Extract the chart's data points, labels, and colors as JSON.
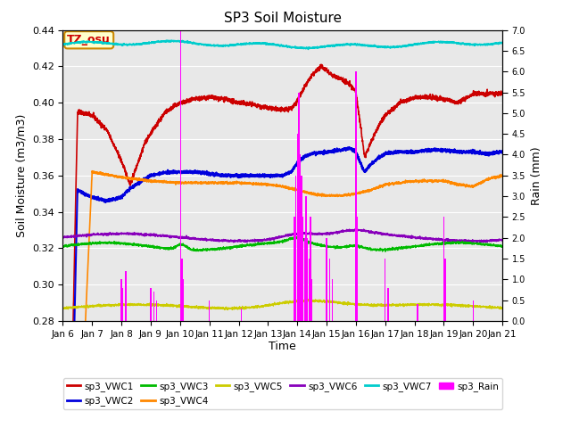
{
  "title": "SP3 Soil Moisture",
  "xlabel": "Time",
  "ylabel_left": "Soil Moisture (m3/m3)",
  "ylabel_right": "Rain (mm)",
  "ylim_left": [
    0.28,
    0.44
  ],
  "ylim_right": [
    0.0,
    7.0
  ],
  "bg_color": "#e8e8e8",
  "colors": {
    "VWC1": "#cc0000",
    "VWC2": "#0000dd",
    "VWC3": "#00bb00",
    "VWC4": "#ff8800",
    "VWC5": "#cccc00",
    "VWC6": "#8800bb",
    "VWC7": "#00cccc",
    "Rain": "#ff00ff"
  },
  "legend_entries": [
    {
      "label": "sp3_VWC1",
      "color": "#cc0000"
    },
    {
      "label": "sp3_VWC2",
      "color": "#0000dd"
    },
    {
      "label": "sp3_VWC3",
      "color": "#00bb00"
    },
    {
      "label": "sp3_VWC4",
      "color": "#ff8800"
    },
    {
      "label": "sp3_VWC5",
      "color": "#cccc00"
    },
    {
      "label": "sp3_VWC6",
      "color": "#8800bb"
    },
    {
      "label": "sp3_VWC7",
      "color": "#00cccc"
    },
    {
      "label": "sp3_Rain",
      "color": "#ff00ff"
    }
  ],
  "xtick_labels": [
    "Jan 6",
    "Jan 7",
    "Jan 8",
    "Jan 9",
    "Jan 10",
    "Jan 11",
    "Jan 12",
    "Jan 13",
    "Jan 14",
    "Jan 15",
    "Jan 16",
    "Jan 17",
    "Jan 18",
    "Jan 19",
    "Jan 20",
    "Jan 21"
  ],
  "xtick_positions": [
    0,
    1,
    2,
    3,
    4,
    5,
    6,
    7,
    8,
    9,
    10,
    11,
    12,
    13,
    14,
    15
  ],
  "yticks_left": [
    0.28,
    0.3,
    0.32,
    0.34,
    0.36,
    0.38,
    0.4,
    0.42,
    0.44
  ],
  "yticks_right": [
    0.0,
    0.5,
    1.0,
    1.5,
    2.0,
    2.5,
    3.0,
    3.5,
    4.0,
    4.5,
    5.0,
    5.5,
    6.0,
    6.5,
    7.0
  ],
  "tz_label": "TZ_osu"
}
